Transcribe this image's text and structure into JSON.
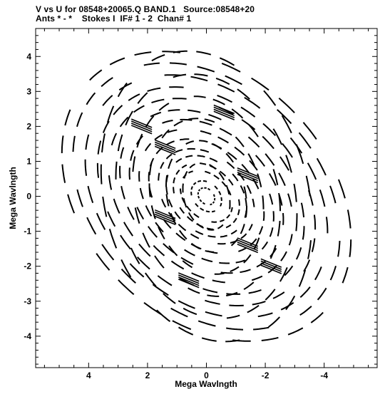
{
  "header": {
    "line1": "V vs U for 08548+20065.Q BAND.1   Source:08548+20",
    "line2": "Ants * - *    Stokes I  IF# 1 - 2  Chan# 1"
  },
  "chart_data": {
    "type": "scatter",
    "title": "V vs U for 08548+20065.Q BAND.1   Source:08548+20",
    "subtitle": "Ants * - *    Stokes I  IF# 1 - 2  Chan# 1",
    "xlabel": "Mega Wavlngth",
    "ylabel": "Mega Wavlngth",
    "xlim": [
      5.8,
      -5.8
    ],
    "ylim": [
      -4.9,
      4.8
    ],
    "x_reversed": true,
    "x_ticks": [
      4,
      2,
      0,
      -2,
      -4
    ],
    "x_tick_labels": [
      "4",
      "2",
      "0",
      "-2",
      "-4"
    ],
    "y_ticks": [
      4,
      3,
      2,
      1,
      0,
      -1,
      -2,
      -3,
      -4
    ],
    "y_tick_labels": [
      "4",
      "3",
      "2",
      "1",
      "0",
      "-1",
      "-2",
      "-3",
      "-4"
    ],
    "grid": false,
    "legend": "none",
    "marker_color": "#000000",
    "uv_tracks": [
      {
        "rx": 0.3,
        "ry": 0.22,
        "rot": 30,
        "start": 0,
        "segments": 14
      },
      {
        "rx": 0.55,
        "ry": 0.4,
        "rot": 30,
        "start": 10,
        "segments": 16
      },
      {
        "rx": 0.95,
        "ry": 0.65,
        "rot": 30,
        "start": 5,
        "segments": 18
      },
      {
        "rx": 1.2,
        "ry": 0.85,
        "rot": 30,
        "start": 20,
        "segments": 20
      },
      {
        "rx": 1.45,
        "ry": 1.05,
        "rot": 30,
        "start": 0,
        "segments": 20
      },
      {
        "rx": 1.75,
        "ry": 1.2,
        "rot": 30,
        "start": 12,
        "segments": 22
      },
      {
        "rx": 2.1,
        "ry": 1.45,
        "rot": 30,
        "start": 8,
        "segments": 22
      },
      {
        "rx": 2.45,
        "ry": 1.7,
        "rot": 30,
        "start": 18,
        "segments": 24
      },
      {
        "rx": 2.8,
        "ry": 1.95,
        "rot": 30,
        "start": 3,
        "segments": 24
      },
      {
        "rx": 3.15,
        "ry": 2.2,
        "rot": 30,
        "start": 14,
        "segments": 26
      },
      {
        "rx": 3.55,
        "ry": 2.5,
        "rot": 30,
        "start": 6,
        "segments": 26
      },
      {
        "rx": 3.95,
        "ry": 2.8,
        "rot": 30,
        "start": 22,
        "segments": 28
      },
      {
        "rx": 4.4,
        "ry": 3.1,
        "rot": 30,
        "start": 9,
        "segments": 28
      },
      {
        "rx": 4.85,
        "ry": 3.4,
        "rot": 30,
        "start": 16,
        "segments": 30
      },
      {
        "rx": 5.25,
        "ry": 3.7,
        "rot": 30,
        "start": 2,
        "segments": 30
      },
      {
        "rx": 0.75,
        "ry": 1.0,
        "rot": -25,
        "start": 0,
        "segments": 14
      },
      {
        "rx": 1.3,
        "ry": 1.65,
        "rot": -25,
        "start": 10,
        "segments": 18
      },
      {
        "rx": 1.85,
        "ry": 2.3,
        "rot": -25,
        "start": 20,
        "segments": 22
      },
      {
        "rx": 2.4,
        "ry": 2.95,
        "rot": -25,
        "start": 5,
        "segments": 24
      },
      {
        "rx": 2.95,
        "ry": 3.6,
        "rot": -25,
        "start": 15,
        "segments": 26
      },
      {
        "rx": 3.4,
        "ry": 4.3,
        "rot": -25,
        "start": 25,
        "segments": 28
      }
    ],
    "dense_clusters": [
      {
        "u": 2.2,
        "v": 2.0
      },
      {
        "u": 1.4,
        "v": 1.4
      },
      {
        "u": -1.4,
        "v": 0.6
      },
      {
        "u": 1.4,
        "v": -0.6
      },
      {
        "u": -1.4,
        "v": -1.4
      },
      {
        "u": -2.2,
        "v": -2.0
      },
      {
        "u": -0.6,
        "v": 2.4
      },
      {
        "u": 0.6,
        "v": -2.4
      }
    ]
  }
}
